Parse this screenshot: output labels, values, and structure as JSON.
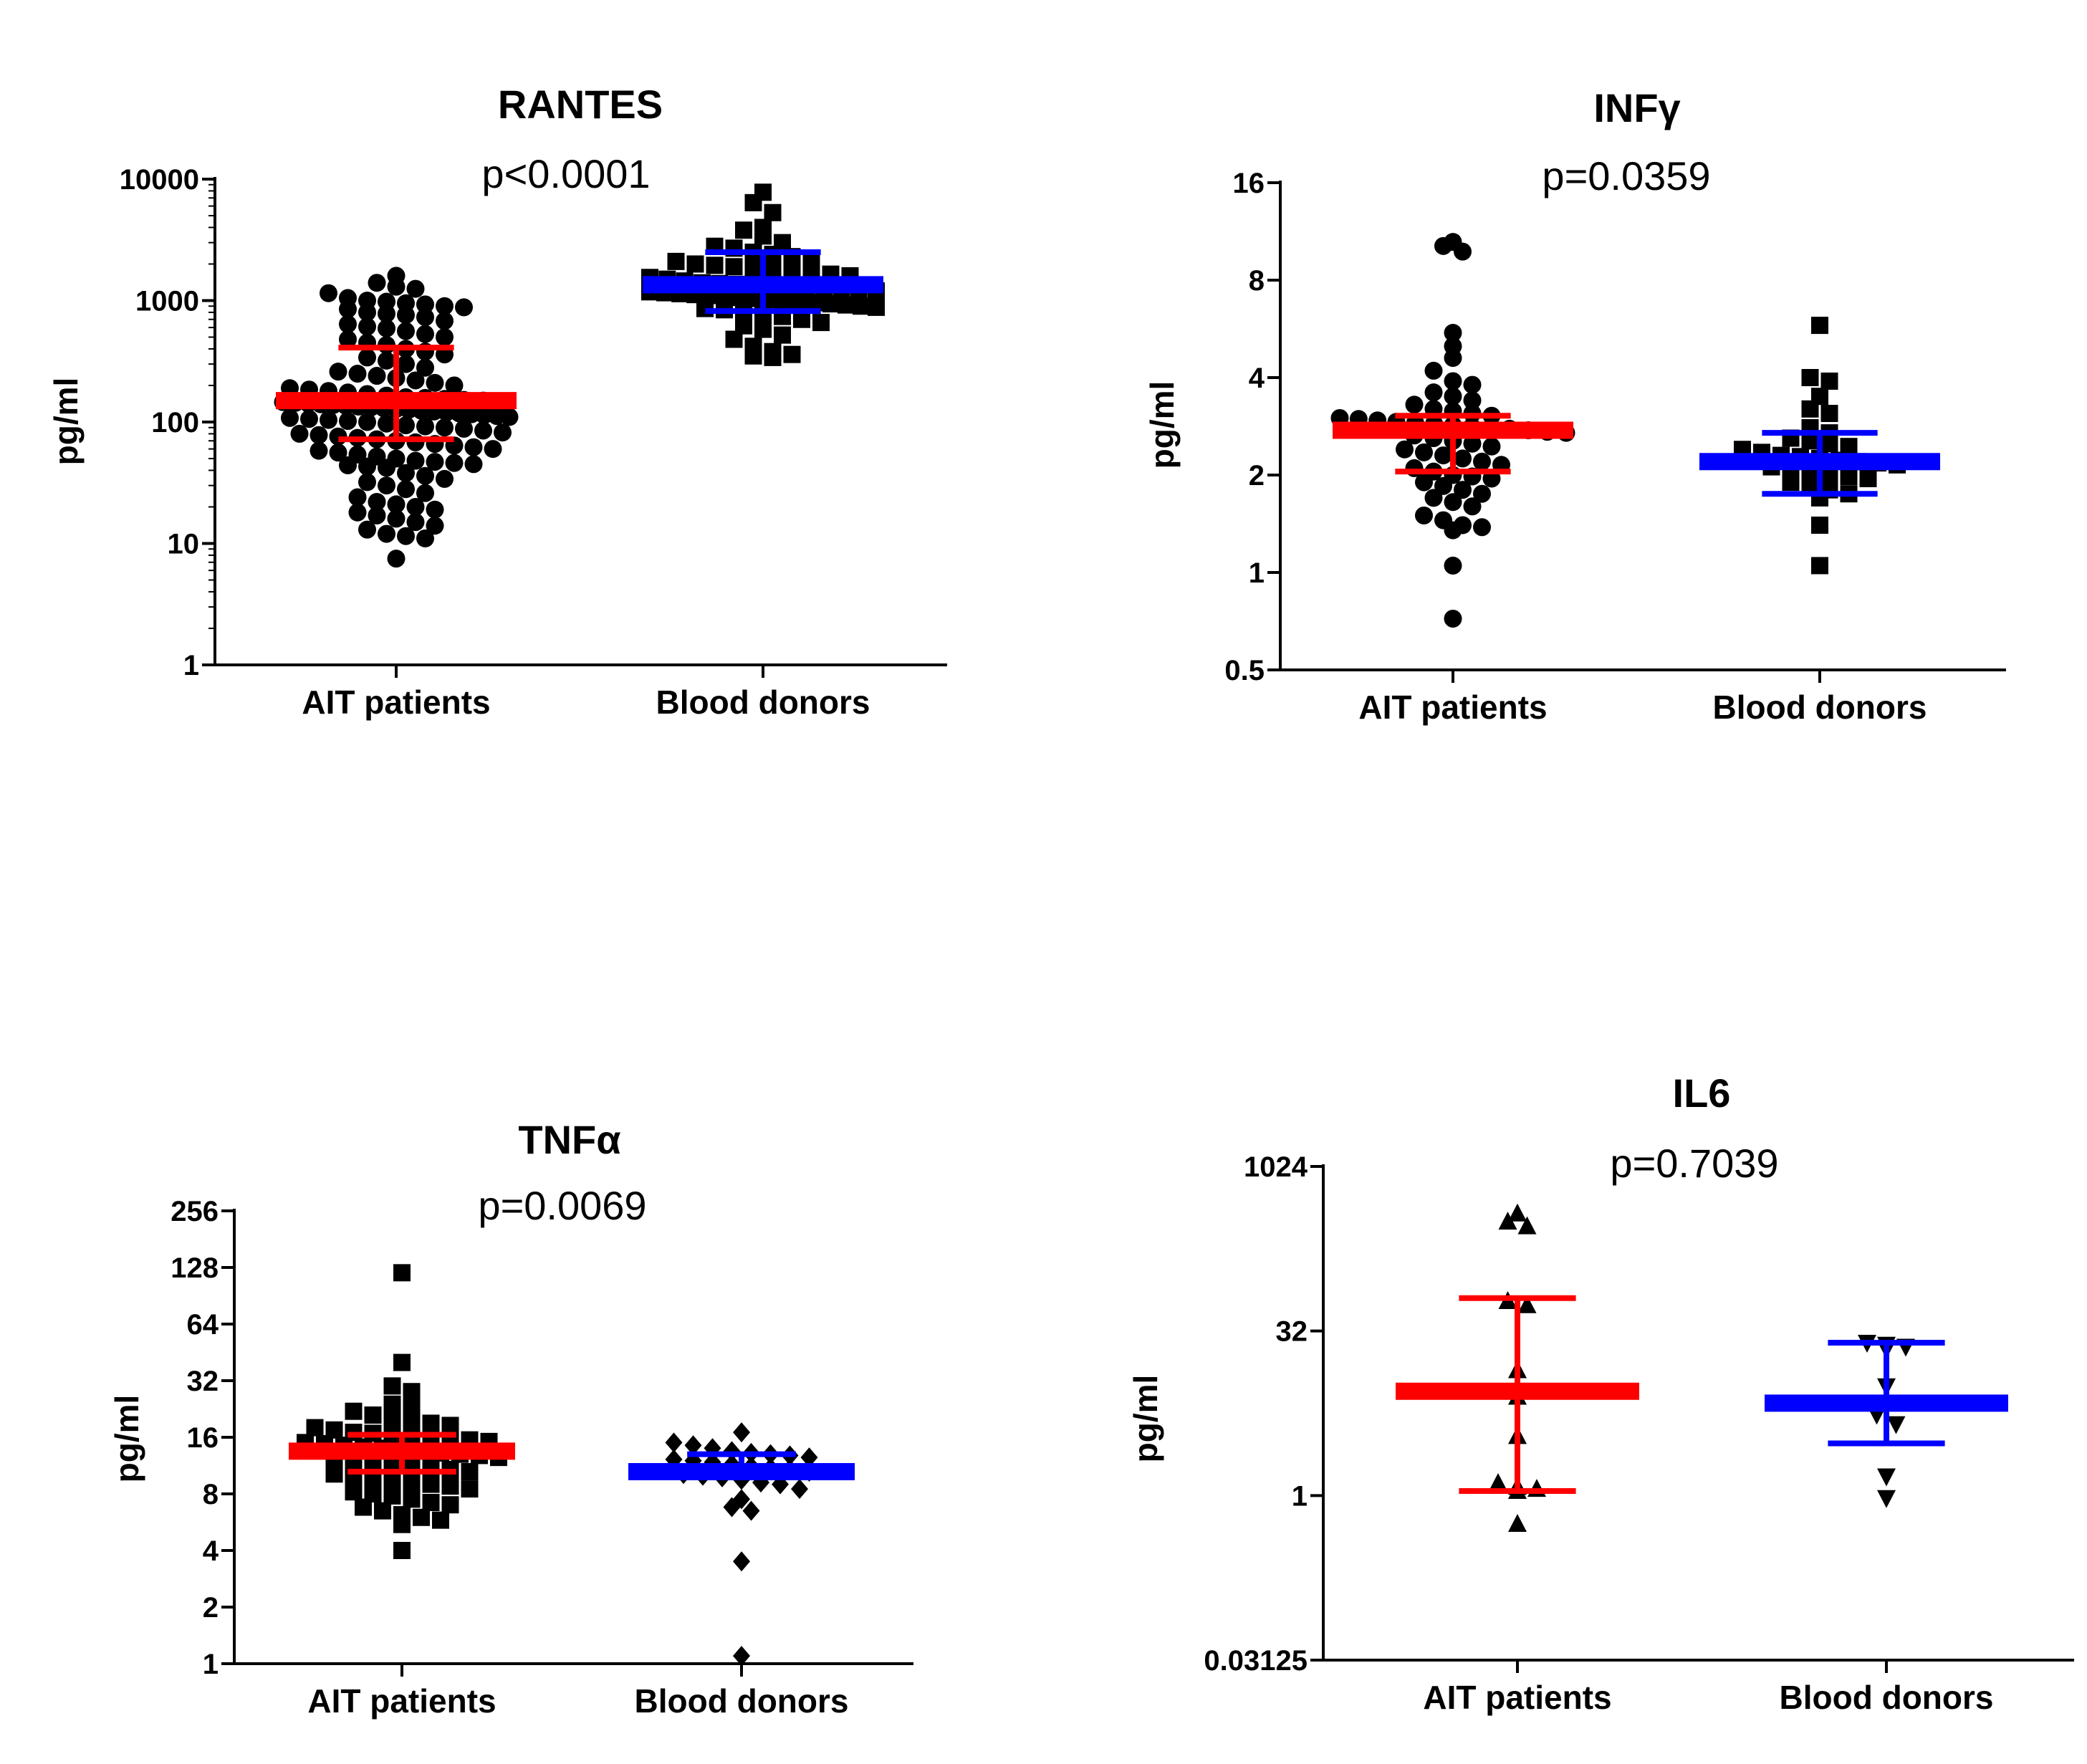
{
  "chart_data": [
    {
      "type": "scatter",
      "title": "RANTES",
      "subtitle": "p<0.0001",
      "ylabel": "pg/ml",
      "yscale": "log10",
      "ylim": [
        1,
        10000
      ],
      "yticks": [
        1,
        10,
        100,
        1000,
        10000
      ],
      "ytick_labels": [
        "1",
        "10",
        "100",
        "1000",
        "10000"
      ],
      "categories": [
        "AIT patients",
        "Blood donors"
      ],
      "series": [
        {
          "marker": "circle",
          "color": "#000000",
          "summary_color": "#ff0000",
          "median": 150,
          "q1": 72,
          "q3": 410,
          "values": [
            1600,
            1400,
            1300,
            1250,
            1150,
            1050,
            1000,
            980,
            950,
            930,
            900,
            880,
            850,
            800,
            780,
            760,
            730,
            680,
            640,
            610,
            590,
            560,
            530,
            500,
            480,
            450,
            430,
            400,
            380,
            360,
            340,
            320,
            300,
            280,
            260,
            250,
            240,
            230,
            220,
            210,
            200,
            190,
            185,
            180,
            175,
            170,
            165,
            160,
            158,
            155,
            152,
            150,
            148,
            146,
            144,
            142,
            140,
            138,
            136,
            134,
            132,
            130,
            128,
            126,
            124,
            122,
            120,
            118,
            116,
            114,
            112,
            110,
            108,
            106,
            104,
            102,
            100,
            97,
            94,
            92,
            90,
            88,
            85,
            82,
            80,
            78,
            76,
            74,
            72,
            70,
            68,
            66,
            64,
            62,
            60,
            58,
            56,
            54,
            52,
            50,
            48,
            47,
            46,
            45,
            44,
            43,
            42,
            38,
            36,
            34,
            32,
            30,
            28,
            26,
            24,
            22,
            21,
            20,
            19,
            18,
            17,
            16,
            15,
            14,
            13,
            12,
            11.5,
            11,
            7.5
          ]
        },
        {
          "marker": "square",
          "color": "#000000",
          "summary_color": "#0000ff",
          "median": 1350,
          "q1": 820,
          "q3": 2500,
          "values": [
            7800,
            6400,
            5300,
            4000,
            3800,
            3400,
            3000,
            2800,
            2700,
            2500,
            2400,
            2300,
            2200,
            2100,
            2000,
            1950,
            1900,
            1850,
            1800,
            1750,
            1700,
            1650,
            1600,
            1550,
            1500,
            1450,
            1400,
            1380,
            1360,
            1340,
            1320,
            1300,
            1280,
            1260,
            1240,
            1220,
            1200,
            1180,
            1160,
            1140,
            1120,
            1100,
            1080,
            1060,
            1040,
            1020,
            1000,
            980,
            960,
            940,
            920,
            900,
            880,
            860,
            840,
            820,
            780,
            740,
            700,
            660,
            620,
            580,
            520,
            480,
            420,
            380,
            360,
            350,
            340
          ]
        }
      ]
    },
    {
      "type": "scatter",
      "title": "INFγ",
      "subtitle": "p=0.0359",
      "ylabel": "pg/ml",
      "yscale": "log2",
      "ylim": [
        0.5,
        16
      ],
      "yticks": [
        0.5,
        1,
        2,
        4,
        8,
        16
      ],
      "ytick_labels": [
        "0.5",
        "1",
        "2",
        "4",
        "8",
        "16"
      ],
      "categories": [
        "AIT patients",
        "Blood donors"
      ],
      "series": [
        {
          "marker": "circle",
          "color": "#000000",
          "summary_color": "#ff0000",
          "median": 2.75,
          "q1": 2.05,
          "q3": 3.05,
          "values": [
            10.5,
            10.2,
            9.8,
            5.5,
            5.0,
            4.6,
            4.2,
            3.9,
            3.8,
            3.6,
            3.5,
            3.4,
            3.3,
            3.2,
            3.15,
            3.1,
            3.05,
            3.0,
            2.98,
            2.95,
            2.92,
            2.9,
            2.88,
            2.85,
            2.82,
            2.8,
            2.78,
            2.75,
            2.72,
            2.7,
            2.65,
            2.6,
            2.55,
            2.5,
            2.45,
            2.4,
            2.35,
            2.3,
            2.25,
            2.2,
            2.15,
            2.1,
            2.05,
            2.0,
            1.98,
            1.95,
            1.9,
            1.85,
            1.8,
            1.75,
            1.7,
            1.65,
            1.6,
            1.5,
            1.45,
            1.4,
            1.38,
            1.35,
            1.05,
            0.72
          ]
        },
        {
          "marker": "square",
          "color": "#000000",
          "summary_color": "#0000ff",
          "median": 2.2,
          "q1": 1.75,
          "q3": 2.7,
          "values": [
            5.8,
            4.0,
            3.9,
            3.5,
            3.2,
            3.1,
            2.8,
            2.7,
            2.6,
            2.55,
            2.5,
            2.45,
            2.4,
            2.35,
            2.3,
            2.28,
            2.25,
            2.22,
            2.2,
            2.18,
            2.15,
            2.12,
            2.1,
            2.05,
            2.0,
            1.98,
            1.95,
            1.9,
            1.85,
            1.8,
            1.75,
            1.7,
            1.4,
            1.05
          ]
        }
      ]
    },
    {
      "type": "scatter",
      "title": "TNFα",
      "subtitle": "p=0.0069",
      "ylabel": "pg/ml",
      "yscale": "log2",
      "ylim": [
        1,
        256
      ],
      "yticks": [
        1,
        2,
        4,
        8,
        16,
        32,
        64,
        128,
        256
      ],
      "ytick_labels": [
        "1",
        "2",
        "4",
        "8",
        "16",
        "32",
        "64",
        "128",
        "256"
      ],
      "categories": [
        "AIT patients",
        "Blood donors"
      ],
      "series": [
        {
          "marker": "square",
          "color": "#000000",
          "summary_color": "#ff0000",
          "median": 13.5,
          "q1": 10.5,
          "q3": 16.5,
          "values": [
            120,
            40,
            30,
            28,
            24,
            23,
            22,
            21,
            20,
            19.5,
            19,
            18.5,
            18,
            17.5,
            17,
            16.8,
            16.5,
            16.2,
            16,
            15.8,
            15.5,
            15.2,
            15,
            14.8,
            14.5,
            14.2,
            14,
            13.8,
            13.5,
            13.2,
            13,
            12.8,
            12.5,
            12.2,
            12,
            11.8,
            11.5,
            11.2,
            11,
            10.8,
            10.5,
            10.2,
            10,
            9.8,
            9.5,
            9.2,
            9,
            8.8,
            8.5,
            8.2,
            8,
            7.8,
            7.5,
            7.2,
            7,
            6.8,
            6.5,
            6.2,
            6,
            5.8,
            5.5,
            4
          ]
        },
        {
          "marker": "diamond",
          "color": "#000000",
          "summary_color": "#0000ff",
          "median": 10.5,
          "q1": 9.8,
          "q3": 13,
          "values": [
            17,
            15,
            14.5,
            14,
            13.5,
            13.2,
            13,
            12.8,
            12.5,
            12.2,
            12,
            11.8,
            11.5,
            11.2,
            11,
            10.8,
            10.5,
            10.2,
            10,
            9.8,
            9.5,
            9.2,
            9,
            8.5,
            7.5,
            6.8,
            6.5,
            3.5,
            1.1
          ]
        }
      ]
    },
    {
      "type": "scatter",
      "title": "IL6",
      "subtitle": "p=0.7039",
      "ylabel": "pg/ml",
      "yscale": "log2",
      "ylim": [
        0.03125,
        1024
      ],
      "yticks": [
        0.03125,
        1,
        32,
        1024
      ],
      "ytick_labels": [
        "0.03125",
        "1",
        "32",
        "1024"
      ],
      "categories": [
        "AIT patients",
        "Blood donors"
      ],
      "series": [
        {
          "marker": "triangle-up",
          "color": "#000000",
          "summary_color": "#ff0000",
          "median": 9,
          "q1": 1.1,
          "q3": 64,
          "values": [
            380,
            320,
            290,
            60,
            55,
            14,
            9,
            8,
            3.5,
            1.3,
            1.2,
            1.15,
            1.1,
            0.55
          ]
        },
        {
          "marker": "triangle-down",
          "color": "#000000",
          "summary_color": "#0000ff",
          "median": 7,
          "q1": 3,
          "q3": 25,
          "values": [
            25,
            24,
            23,
            22,
            10,
            5.5,
            4.5,
            1.5,
            0.95
          ]
        }
      ]
    }
  ]
}
